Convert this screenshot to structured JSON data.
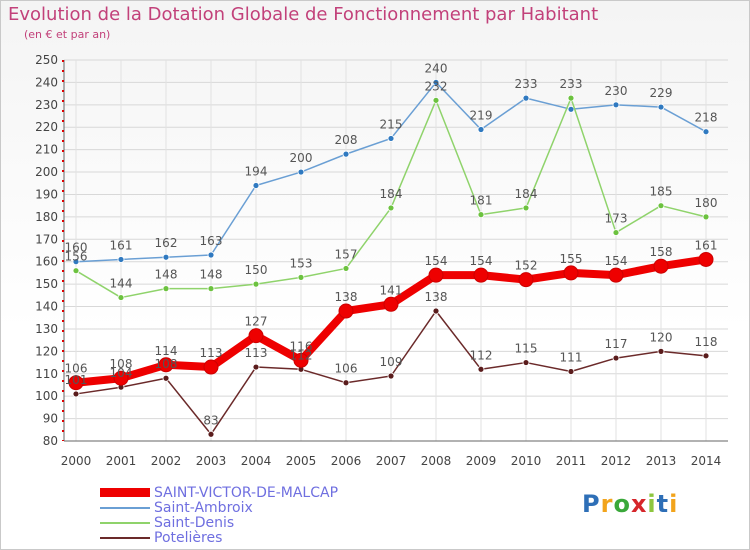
{
  "header": {
    "title": "Evolution de la Dotation Globale de Fonctionnement par Habitant",
    "subtitle": "(en € et par an)"
  },
  "logo": {
    "text": "Proxiti",
    "colors": [
      "#2e6fb7",
      "#f2a41c",
      "#3aa83a",
      "#d6262b",
      "#8dc63f"
    ]
  },
  "chart_data": {
    "type": "line",
    "title": "Evolution de la Dotation Globale de Fonctionnement par Habitant",
    "subtitle": "(en € et par an)",
    "xlabel": "",
    "ylabel": "",
    "categories": [
      "2000",
      "2001",
      "2002",
      "2003",
      "2004",
      "2005",
      "2006",
      "2007",
      "2008",
      "2009",
      "2010",
      "2011",
      "2012",
      "2013",
      "2014"
    ],
    "ylim": [
      80,
      250
    ],
    "yticks": [
      80,
      90,
      100,
      110,
      120,
      130,
      140,
      150,
      160,
      170,
      180,
      190,
      200,
      210,
      220,
      230,
      240,
      250
    ],
    "grid": true,
    "legend_position": "bottom-left",
    "series": [
      {
        "name": "Saint-Ambroix",
        "color": "#6a9fd4",
        "marker": "#2f79c0",
        "values": [
          160,
          161,
          162,
          163,
          194,
          200,
          208,
          215,
          240,
          219,
          233,
          228,
          230,
          229,
          218
        ],
        "labels": [
          160,
          161,
          162,
          163,
          194,
          200,
          208,
          215,
          240,
          219,
          233,
          null,
          230,
          229,
          218
        ]
      },
      {
        "name": "Saint-Denis",
        "color": "#8fd36b",
        "marker": "#6cc23f",
        "values": [
          156,
          144,
          148,
          148,
          150,
          153,
          157,
          184,
          232,
          181,
          184,
          233,
          173,
          185,
          180
        ],
        "labels": [
          156,
          144,
          148,
          148,
          150,
          153,
          157,
          184,
          232,
          181,
          184,
          233,
          173,
          185,
          180
        ]
      },
      {
        "name": "Potelières",
        "color": "#6b2a2a",
        "marker": "#5a1c1c",
        "values": [
          101,
          104,
          108,
          83,
          113,
          112,
          106,
          109,
          138,
          112,
          115,
          111,
          117,
          120,
          118
        ],
        "labels": [
          101,
          104,
          108,
          83,
          113,
          112,
          106,
          109,
          138,
          112,
          115,
          111,
          117,
          120,
          118
        ]
      },
      {
        "name": "SAINT-VICTOR-DE-MALCAP",
        "color": "#ee0000",
        "marker": "#ee0000",
        "values": [
          106,
          108,
          114,
          113,
          127,
          116,
          138,
          141,
          154,
          154,
          152,
          155,
          154,
          158,
          161
        ],
        "labels": [
          106,
          108,
          114,
          113,
          127,
          116,
          138,
          141,
          154,
          154,
          152,
          155,
          154,
          158,
          161
        ]
      }
    ]
  },
  "legend": [
    {
      "label": "SAINT-VICTOR-DE-MALCAP",
      "color": "#ee0000"
    },
    {
      "label": "Saint-Ambroix",
      "color": "#6a9fd4"
    },
    {
      "label": "Saint-Denis",
      "color": "#8fd36b"
    },
    {
      "label": "Potelières",
      "color": "#6b2a2a"
    }
  ]
}
